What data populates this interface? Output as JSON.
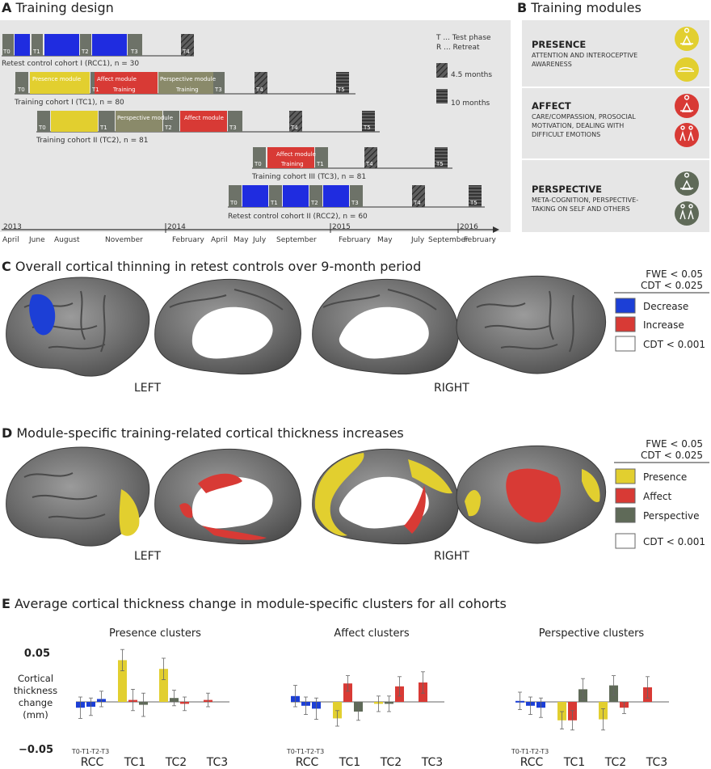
{
  "panelA": {
    "letter": "A",
    "title": "Training design",
    "legend": {
      "test_phase": "T ... Test phase",
      "retreat": "R ... Retreat",
      "duration_short": "4.5 months",
      "duration_long": "10 months"
    },
    "cohorts": [
      {
        "label": "Retest control cohort I (RCC1), n = 30"
      },
      {
        "label": "Training cohort I (TC1), n = 80"
      },
      {
        "label": "Training cohort II (TC2), n = 81"
      },
      {
        "label": "Training cohort III (TC3), n = 81"
      },
      {
        "label": "Retest control cohort II (RCC2), n = 60"
      }
    ],
    "module_names": {
      "presence": "Presence module",
      "affect": "Affect module",
      "perspective": "Perspective module",
      "training": "Training",
      "retreat": "R"
    },
    "phase_labels": [
      "T0",
      "T1",
      "T2",
      "T3",
      "T4",
      "T5"
    ],
    "timeline_years": [
      "2013",
      "2014",
      "2015",
      "2016"
    ],
    "timeline_months": [
      "April",
      "June",
      "August",
      "November",
      "February",
      "April",
      "May",
      "July",
      "September",
      "February",
      "May",
      "July",
      "September",
      "February"
    ]
  },
  "panelB": {
    "letter": "B",
    "title": "Training modules",
    "modules": [
      {
        "name": "PRESENCE",
        "desc1": "ATTENTION AND INTEROCEPTIVE",
        "desc2": "AWARENESS",
        "desc3": "",
        "color": "#e2cf2f"
      },
      {
        "name": "AFFECT",
        "desc1": "CARE/COMPASSION, PROSOCIAL",
        "desc2": "MOTIVATION, DEALING WITH",
        "desc3": "DIFFICULT EMOTIONS",
        "color": "#d83a35"
      },
      {
        "name": "PERSPECTIVE",
        "desc1": "META-COGNITION, PERSPECTIVE-",
        "desc2": "TAKING ON SELF AND OTHERS",
        "desc3": "",
        "color": "#5f6a58"
      }
    ]
  },
  "panelC": {
    "letter": "C",
    "title": "Overall cortical thinning in retest controls over 9-month period",
    "thresholds": {
      "fwe": "FWE < 0.05",
      "cdt": "CDT < 0.025"
    },
    "legend": [
      {
        "label": "Decrease",
        "color": "#1c3fd6"
      },
      {
        "label": "Increase",
        "color": "#d83a35"
      },
      {
        "label": "CDT < 0.001",
        "color": "#ffffff"
      }
    ],
    "hemispheres": {
      "left": "LEFT",
      "right": "RIGHT"
    }
  },
  "panelD": {
    "letter": "D",
    "title": "Module-specific training-related cortical thickness increases",
    "thresholds": {
      "fwe": "FWE < 0.05",
      "cdt": "CDT < 0.025"
    },
    "legend": [
      {
        "label": "Presence",
        "color": "#e2cf2f"
      },
      {
        "label": "Affect",
        "color": "#d83a35"
      },
      {
        "label": "Perspective",
        "color": "#5f6a58"
      },
      {
        "label": "CDT < 0.001",
        "color": "#ffffff"
      }
    ],
    "hemispheres": {
      "left": "LEFT",
      "right": "RIGHT"
    }
  },
  "panelE": {
    "letter": "E",
    "title": "Average cortical thickness change in module-specific clusters for all cohorts",
    "ylabel_lines": [
      "Cortical",
      "thickness",
      "change",
      "(mm)"
    ],
    "ytick_top": "0.05",
    "ytick_bottom": "−0.05",
    "rcc_sub": "T0-T1-T2-T3",
    "groups": [
      "RCC",
      "TC1",
      "TC2",
      "TC3"
    ]
  },
  "chart_data": {
    "type": "bar",
    "ylabel": "Cortical thickness change (mm)",
    "ylim": [
      -0.05,
      0.05
    ],
    "categories": [
      "RCC",
      "TC1",
      "TC2",
      "TC3"
    ],
    "panels": [
      {
        "title": "Presence clusters",
        "bars": [
          {
            "group": "RCC",
            "color": "#1c3fd6",
            "values": [
              -0.006,
              -0.005,
              0.003
            ],
            "errors": [
              0.011,
              0.009,
              0.008
            ]
          },
          {
            "group": "TC1",
            "color": "#e2cf2f",
            "values": [
              0.043
            ],
            "errors": [
              0.011
            ]
          },
          {
            "group": "TC1",
            "color": "#d83a35",
            "values": [
              0.002
            ],
            "errors": [
              0.011
            ]
          },
          {
            "group": "TC1",
            "color": "#5f6a58",
            "values": [
              -0.003
            ],
            "errors": [
              0.012
            ]
          },
          {
            "group": "TC2",
            "color": "#e2cf2f",
            "values": [
              0.034
            ],
            "errors": [
              0.011
            ]
          },
          {
            "group": "TC2",
            "color": "#5f6a58",
            "values": [
              0.004
            ],
            "errors": [
              0.008
            ]
          },
          {
            "group": "TC2",
            "color": "#d83a35",
            "values": [
              -0.002
            ],
            "errors": [
              0.007
            ]
          },
          {
            "group": "TC3",
            "color": "#d83a35",
            "values": [
              0.002
            ],
            "errors": [
              0.007
            ]
          }
        ]
      },
      {
        "title": "Affect clusters",
        "bars": [
          {
            "group": "RCC",
            "color": "#1c3fd6",
            "values": [
              0.006,
              -0.004,
              -0.007
            ],
            "errors": [
              0.011,
              0.009,
              0.011
            ]
          },
          {
            "group": "TC1",
            "color": "#e2cf2f",
            "values": [
              -0.017
            ],
            "errors": [
              0.008
            ]
          },
          {
            "group": "TC1",
            "color": "#d83a35",
            "values": [
              0.019
            ],
            "errors": [
              0.008
            ]
          },
          {
            "group": "TC1",
            "color": "#5f6a58",
            "values": [
              -0.01
            ],
            "errors": [
              0.009
            ]
          },
          {
            "group": "TC2",
            "color": "#e2cf2f",
            "values": [
              -0.002
            ],
            "errors": [
              0.008
            ]
          },
          {
            "group": "TC2",
            "color": "#5f6a58",
            "values": [
              -0.002
            ],
            "errors": [
              0.008
            ]
          },
          {
            "group": "TC2",
            "color": "#d83a35",
            "values": [
              0.016
            ],
            "errors": [
              0.01
            ]
          },
          {
            "group": "TC3",
            "color": "#d83a35",
            "values": [
              0.02
            ],
            "errors": [
              0.011
            ]
          }
        ]
      },
      {
        "title": "Perspective clusters",
        "bars": [
          {
            "group": "RCC",
            "color": "#1c3fd6",
            "values": [
              0.001,
              -0.004,
              -0.006
            ],
            "errors": [
              0.009,
              0.009,
              0.01
            ]
          },
          {
            "group": "TC1",
            "color": "#e2cf2f",
            "values": [
              -0.019
            ],
            "errors": [
              0.009
            ]
          },
          {
            "group": "TC1",
            "color": "#d83a35",
            "values": [
              -0.019
            ],
            "errors": [
              0.01
            ]
          },
          {
            "group": "TC1",
            "color": "#5f6a58",
            "values": [
              0.013
            ],
            "errors": [
              0.011
            ]
          },
          {
            "group": "TC2",
            "color": "#e2cf2f",
            "values": [
              -0.018
            ],
            "errors": [
              0.011
            ]
          },
          {
            "group": "TC2",
            "color": "#5f6a58",
            "values": [
              0.017
            ],
            "errors": [
              0.01
            ]
          },
          {
            "group": "TC2",
            "color": "#d83a35",
            "values": [
              -0.006
            ],
            "errors": [
              0.006
            ]
          },
          {
            "group": "TC3",
            "color": "#d83a35",
            "values": [
              0.015
            ],
            "errors": [
              0.011
            ]
          }
        ]
      }
    ]
  }
}
